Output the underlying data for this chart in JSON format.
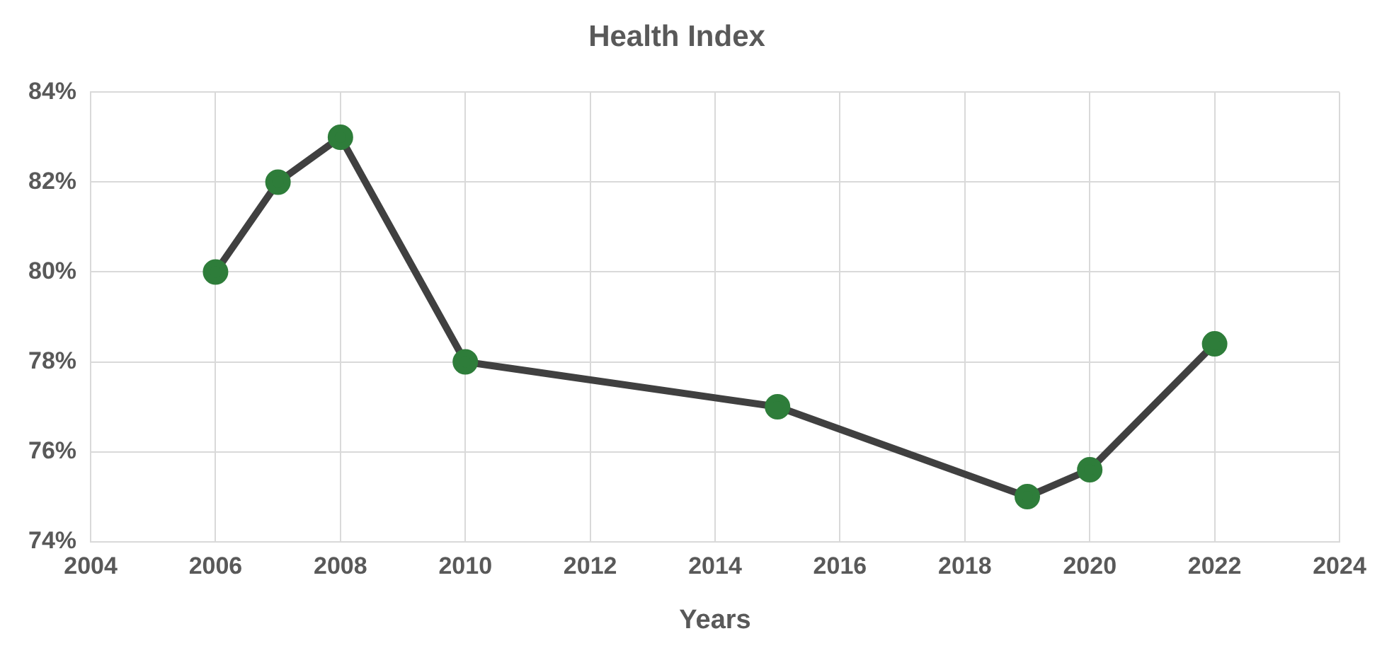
{
  "chart_data": {
    "type": "line",
    "title": "Health Index",
    "xlabel": "Years",
    "x": [
      2006,
      2007,
      2008,
      2010,
      2015,
      2019,
      2020,
      2022
    ],
    "series": [
      {
        "color": "#404040",
        "colors": [
          "#2e7d3a",
          "#2e7d3a",
          "#2e7d3a",
          "#2e7d3a",
          "#2e7d3a",
          "#2e7d3a",
          "#2e7d3a",
          "#2e7d3a"
        ],
        "values": [
          80,
          82,
          83,
          78,
          77,
          75,
          75.6,
          78.4
        ]
      }
    ],
    "marker": "circle",
    "line_style": "solid",
    "grid": true,
    "legend": false,
    "xlim": [
      2004,
      2024
    ],
    "xticks": [
      2004,
      2006,
      2008,
      2010,
      2012,
      2014,
      2016,
      2018,
      2020,
      2022,
      2024
    ],
    "ylim": [
      74,
      84
    ],
    "yticks": [
      {
        "value": 74,
        "label": "74%"
      },
      {
        "value": 76,
        "label": "76%"
      },
      {
        "value": 78,
        "label": "78%"
      },
      {
        "value": 80,
        "label": "80%"
      },
      {
        "value": 82,
        "label": "82%"
      },
      {
        "value": 84,
        "label": "84%"
      }
    ]
  }
}
